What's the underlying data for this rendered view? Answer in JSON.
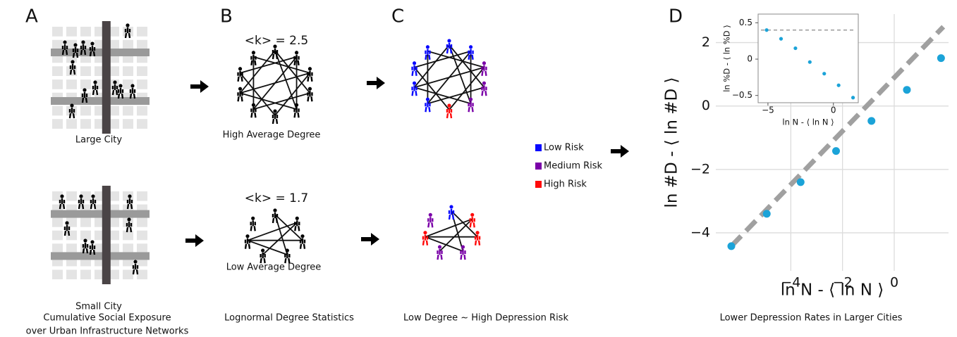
{
  "panels": {
    "labels": [
      "A",
      "B",
      "C",
      "D"
    ],
    "large_city": "Large City",
    "small_city": "Small City",
    "k_high": "<k> = 2.5",
    "high_degree": "High Average Degree",
    "k_low": "<k> = 1.7",
    "low_degree": "Low Average Degree",
    "legend": [
      {
        "label": "Low Risk",
        "color": "#0a0aff"
      },
      {
        "label": "Medium Risk",
        "color": "#7a00a8"
      },
      {
        "label": "High Risk",
        "color": "#ff0a0a"
      }
    ],
    "captions": [
      [
        "Cumulative Social Exposure",
        "over Urban Infrastructure Networks"
      ],
      [
        "Lognormal Degree Statistics"
      ],
      [
        "Low Degree ~ High Depression Risk"
      ],
      [
        "Lower Depression Rates in Larger Cities"
      ]
    ]
  },
  "chart_data": [
    {
      "type": "scatter",
      "x": [
        -6.3,
        -4.93,
        -3.62,
        -2.25,
        -0.88,
        0.49,
        1.81
      ],
      "values": [
        -4.42,
        -3.4,
        -2.4,
        -1.42,
        -0.47,
        0.51,
        1.51
      ],
      "color": "#1ba3d8",
      "xlabel": "ln N - ⟨ ln N ⟩",
      "ylabel": "ln #D - ⟨ ln #D ⟩",
      "xlim": [
        -6.9,
        2.1
      ],
      "ylim": [
        -5.2,
        2.9
      ],
      "xticks": [
        {
          "value": -4,
          "label": "−4"
        },
        {
          "value": -2,
          "label": "−2"
        },
        0
      ],
      "yticks": [
        {
          "value": -4,
          "label": "−4"
        },
        {
          "value": -2,
          "label": "−2"
        },
        0,
        2
      ],
      "grid": true,
      "fit": {
        "x": [
          -6.3,
          1.9
        ],
        "values": [
          -4.42,
          2.5
        ],
        "color": "#a0a0a0"
      }
    },
    {
      "type": "scatter",
      "x": [
        -5.1,
        -4.0,
        -2.9,
        -1.8,
        -0.7,
        0.4,
        1.5
      ],
      "values": [
        0.4,
        0.28,
        0.15,
        -0.04,
        -0.2,
        -0.36,
        -0.53
      ],
      "color": "#1ba3d8",
      "xlabel": "ln N - ⟨ ln N ⟩",
      "ylabel": "ln %D - ⟨ ln %D ⟩",
      "xlim": [
        -5.75,
        1.9
      ],
      "ylim": [
        -0.6,
        0.62
      ],
      "xticks": [
        {
          "value": -5,
          "label": "−5"
        },
        0
      ],
      "yticks": [
        {
          "value": -0.5,
          "label": "−0.5"
        },
        0,
        0.5
      ],
      "grid": false,
      "hline": 0.4
    }
  ]
}
